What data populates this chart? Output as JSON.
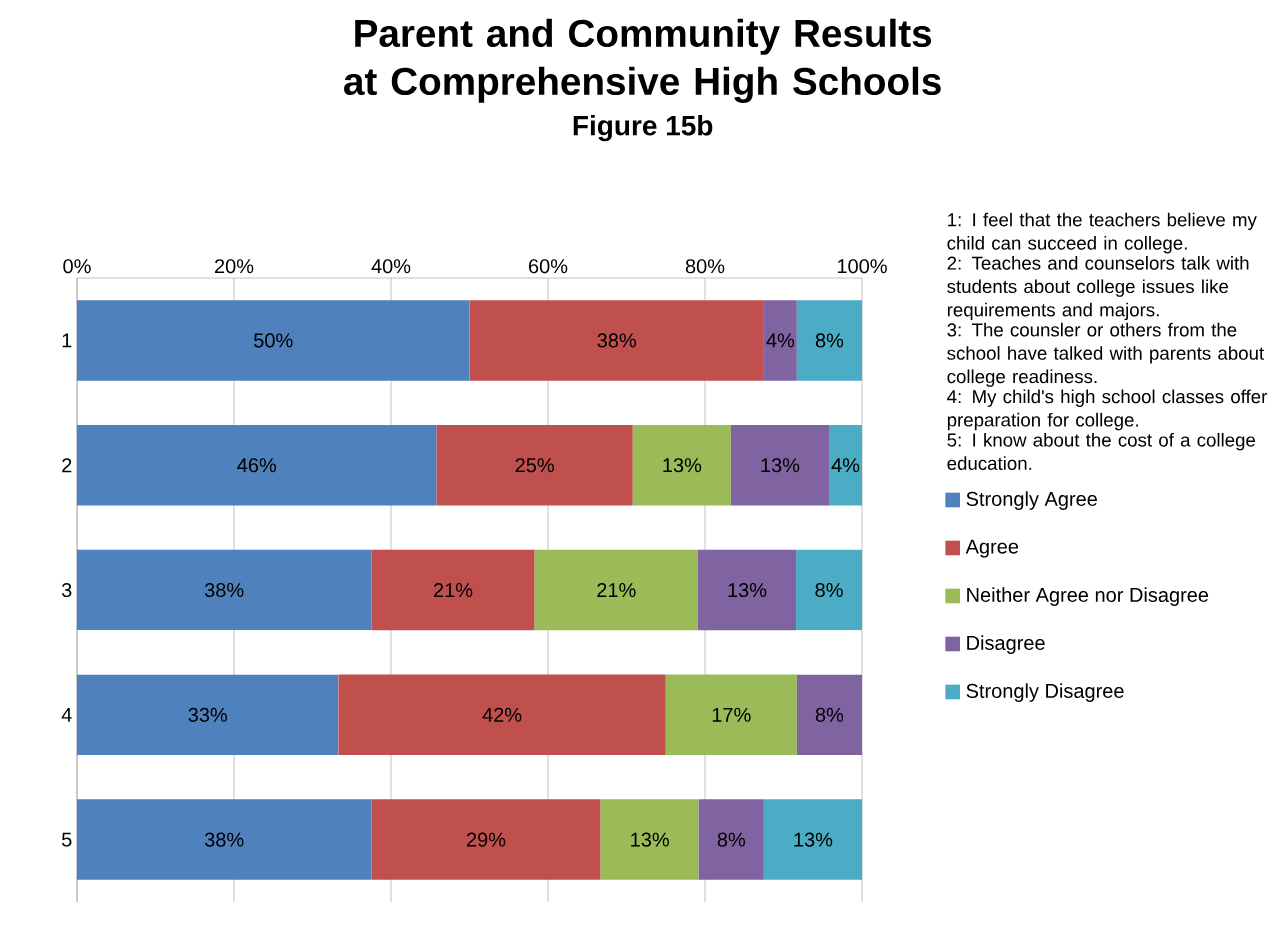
{
  "chart_data": {
    "type": "bar",
    "orientation": "horizontal",
    "stacked": true,
    "title": "Parent and Community Results at Comprehensive High Schools",
    "subtitle": "Figure 15b",
    "categories": [
      "1",
      "2",
      "3",
      "4",
      "5"
    ],
    "series": [
      {
        "name": "Strongly Agree",
        "color": "#4f81bd",
        "values": [
          50,
          45.8,
          37.5,
          33.3,
          37.5
        ],
        "value_labels": [
          "50%",
          "46%",
          "38%",
          "33%",
          "38%"
        ]
      },
      {
        "name": "Agree",
        "color": "#c0504d",
        "values": [
          37.5,
          25,
          20.8,
          41.7,
          29.2
        ],
        "value_labels": [
          "38%",
          "25%",
          "21%",
          "42%",
          "29%"
        ]
      },
      {
        "name": "Neither Agree nor Disagree",
        "color": "#9bbb59",
        "values": [
          null,
          12.5,
          20.8,
          16.7,
          12.5
        ],
        "value_labels": [
          null,
          "13%",
          "21%",
          "17%",
          "13%"
        ]
      },
      {
        "name": "Disagree",
        "color": "#8064a2",
        "values": [
          4.2,
          12.5,
          12.5,
          8.3,
          8.3
        ],
        "value_labels": [
          "4%",
          "13%",
          "13%",
          "8%",
          "8%"
        ]
      },
      {
        "name": "Strongly Disagree",
        "color": "#4bacc6",
        "values": [
          8.3,
          4.2,
          8.4,
          null,
          12.5
        ],
        "value_labels": [
          "8%",
          "4%",
          "8%",
          null,
          "13%"
        ]
      }
    ],
    "xlim": [
      0,
      100
    ],
    "xticks": [
      {
        "value": 0,
        "label": "0%"
      },
      {
        "value": 20,
        "label": "20%"
      },
      {
        "value": 40,
        "label": "40%"
      },
      {
        "value": 60,
        "label": "60%"
      },
      {
        "value": 80,
        "label": "80%"
      },
      {
        "value": 100,
        "label": "100%"
      }
    ],
    "grid": "x",
    "legend": "right",
    "annotations": [
      "1: I feel that the teachers believe my child can succeed in college.",
      "2: Teaches and counselors talk with students about college issues like requirements and majors.",
      "3: The counsler or others from the school have talked with parents about college readiness.",
      "4: My child's high school classes offer preparation for college.",
      "5: I know about the cost of a college education."
    ]
  }
}
